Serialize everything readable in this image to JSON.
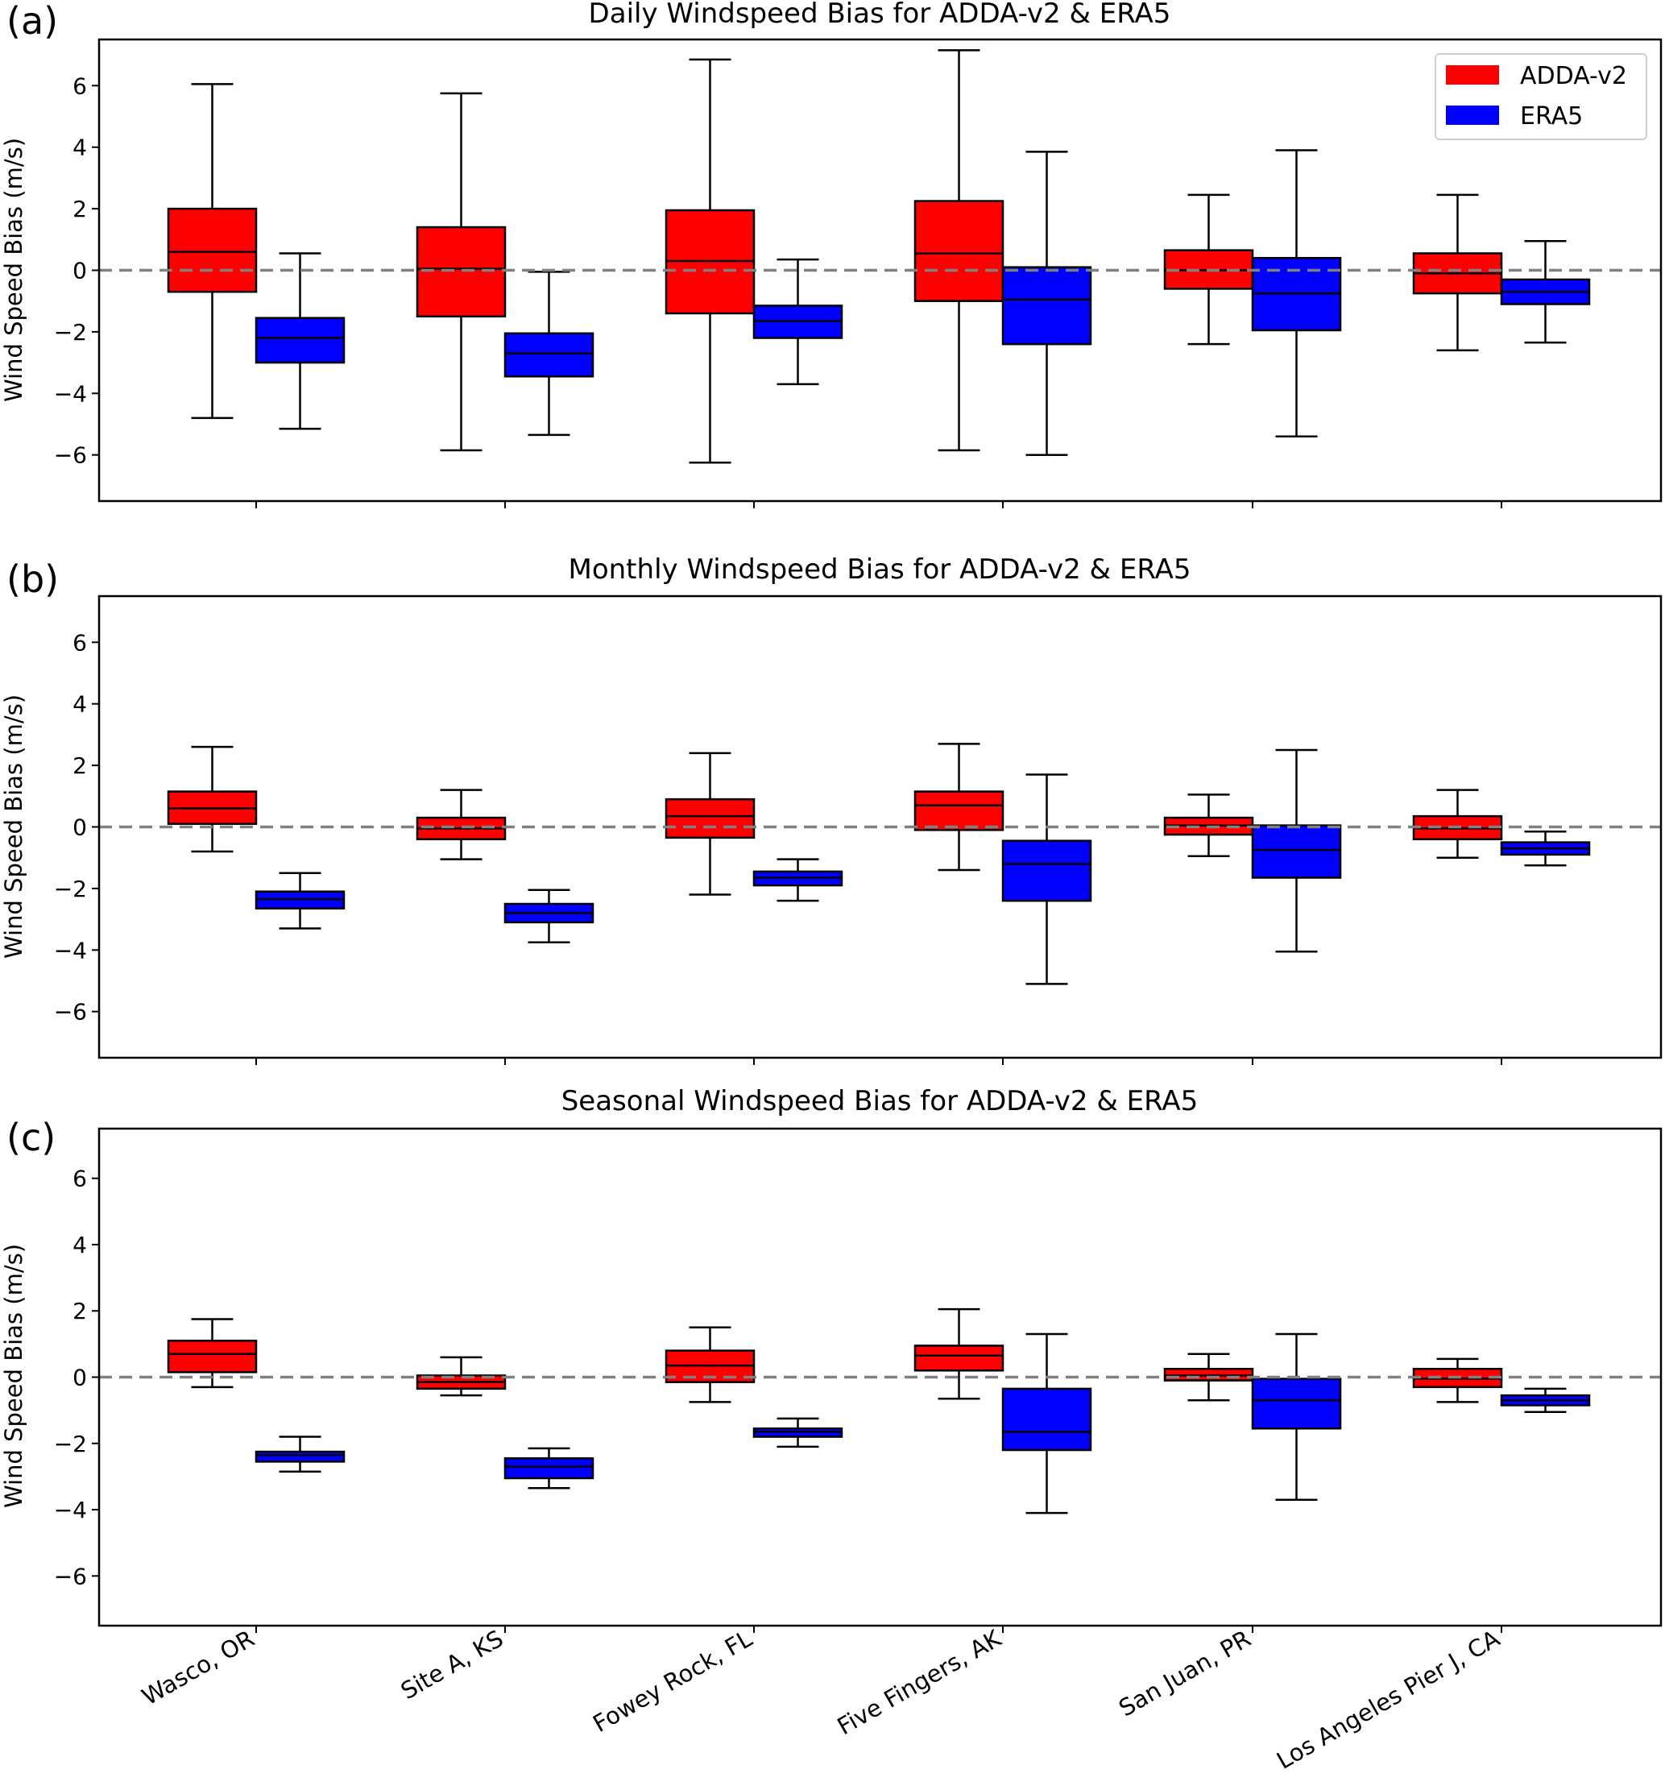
{
  "chart_data": [
    {
      "type": "boxplot",
      "panel_label": "(a)",
      "title": "Daily Windspeed Bias for ADDA-v2 & ERA5",
      "ylabel": "Wind Speed Bias (m/s)",
      "xlabel": "",
      "ylim": [
        -7.5,
        7.5
      ],
      "yticks": [
        -6,
        -4,
        -2,
        0,
        2,
        4,
        6
      ],
      "reference_line": 0,
      "legend": "top-right",
      "categories": [
        "Wasco, OR",
        "Site A, KS",
        "Fowey Rock, FL",
        "Five Fingers, AK",
        "San Juan, PR",
        "Los Angeles Pier J, CA"
      ],
      "series": [
        {
          "name": "ADDA-v2",
          "color": "#ff0000",
          "boxes": [
            {
              "whislo": -4.8,
              "q1": -0.7,
              "med": 0.6,
              "q3": 2.0,
              "whishi": 6.05
            },
            {
              "whislo": -5.85,
              "q1": -1.5,
              "med": 0.05,
              "q3": 1.4,
              "whishi": 5.75
            },
            {
              "whislo": -6.25,
              "q1": -1.4,
              "med": 0.3,
              "q3": 1.95,
              "whishi": 6.85
            },
            {
              "whislo": -5.85,
              "q1": -1.0,
              "med": 0.55,
              "q3": 2.25,
              "whishi": 7.15
            },
            {
              "whislo": -2.4,
              "q1": -0.6,
              "med": 0.0,
              "q3": 0.65,
              "whishi": 2.45
            },
            {
              "whislo": -2.6,
              "q1": -0.75,
              "med": -0.1,
              "q3": 0.55,
              "whishi": 2.45
            }
          ]
        },
        {
          "name": "ERA5",
          "color": "#0000ff",
          "boxes": [
            {
              "whislo": -5.15,
              "q1": -3.0,
              "med": -2.2,
              "q3": -1.55,
              "whishi": 0.55
            },
            {
              "whislo": -5.35,
              "q1": -3.45,
              "med": -2.7,
              "q3": -2.05,
              "whishi": -0.05
            },
            {
              "whislo": -3.7,
              "q1": -2.2,
              "med": -1.65,
              "q3": -1.15,
              "whishi": 0.35
            },
            {
              "whislo": -6.0,
              "q1": -2.4,
              "med": -0.95,
              "q3": 0.1,
              "whishi": 3.85
            },
            {
              "whislo": -5.4,
              "q1": -1.95,
              "med": -0.75,
              "q3": 0.4,
              "whishi": 3.9
            },
            {
              "whislo": -2.35,
              "q1": -1.1,
              "med": -0.7,
              "q3": -0.3,
              "whishi": 0.95
            }
          ]
        }
      ]
    },
    {
      "type": "boxplot",
      "panel_label": "(b)",
      "title": "Monthly Windspeed Bias for ADDA-v2 & ERA5",
      "ylabel": "Wind Speed Bias (m/s)",
      "xlabel": "",
      "ylim": [
        -7.5,
        7.5
      ],
      "yticks": [
        -6,
        -4,
        -2,
        0,
        2,
        4,
        6
      ],
      "reference_line": 0,
      "categories": [
        "Wasco, OR",
        "Site A, KS",
        "Fowey Rock, FL",
        "Five Fingers, AK",
        "San Juan, PR",
        "Los Angeles Pier J, CA"
      ],
      "series": [
        {
          "name": "ADDA-v2",
          "color": "#ff0000",
          "boxes": [
            {
              "whislo": -0.8,
              "q1": 0.1,
              "med": 0.6,
              "q3": 1.15,
              "whishi": 2.6
            },
            {
              "whislo": -1.05,
              "q1": -0.4,
              "med": -0.05,
              "q3": 0.3,
              "whishi": 1.2
            },
            {
              "whislo": -2.2,
              "q1": -0.35,
              "med": 0.35,
              "q3": 0.9,
              "whishi": 2.4
            },
            {
              "whislo": -1.4,
              "q1": -0.1,
              "med": 0.7,
              "q3": 1.15,
              "whishi": 2.7
            },
            {
              "whislo": -0.95,
              "q1": -0.25,
              "med": 0.05,
              "q3": 0.3,
              "whishi": 1.05
            },
            {
              "whislo": -1.0,
              "q1": -0.4,
              "med": -0.05,
              "q3": 0.35,
              "whishi": 1.2
            }
          ]
        },
        {
          "name": "ERA5",
          "color": "#0000ff",
          "boxes": [
            {
              "whislo": -3.3,
              "q1": -2.65,
              "med": -2.35,
              "q3": -2.1,
              "whishi": -1.5
            },
            {
              "whislo": -3.75,
              "q1": -3.1,
              "med": -2.8,
              "q3": -2.5,
              "whishi": -2.05
            },
            {
              "whislo": -2.4,
              "q1": -1.9,
              "med": -1.65,
              "q3": -1.45,
              "whishi": -1.05
            },
            {
              "whislo": -5.1,
              "q1": -2.4,
              "med": -1.2,
              "q3": -0.45,
              "whishi": 1.7
            },
            {
              "whislo": -4.05,
              "q1": -1.65,
              "med": -0.75,
              "q3": 0.05,
              "whishi": 2.5
            },
            {
              "whislo": -1.25,
              "q1": -0.9,
              "med": -0.7,
              "q3": -0.5,
              "whishi": -0.15
            }
          ]
        }
      ]
    },
    {
      "type": "boxplot",
      "panel_label": "(c)",
      "title": "Seasonal Windspeed Bias for ADDA-v2 & ERA5",
      "ylabel": "Wind Speed Bias (m/s)",
      "xlabel": "",
      "ylim": [
        -7.5,
        7.5
      ],
      "yticks": [
        -6,
        -4,
        -2,
        0,
        2,
        4,
        6
      ],
      "reference_line": 0,
      "categories": [
        "Wasco, OR",
        "Site A, KS",
        "Fowey Rock, FL",
        "Five Fingers, AK",
        "San Juan, PR",
        "Los Angeles Pier J, CA"
      ],
      "series": [
        {
          "name": "ADDA-v2",
          "color": "#ff0000",
          "boxes": [
            {
              "whislo": -0.3,
              "q1": 0.15,
              "med": 0.7,
              "q3": 1.1,
              "whishi": 1.75
            },
            {
              "whislo": -0.55,
              "q1": -0.35,
              "med": -0.15,
              "q3": 0.05,
              "whishi": 0.6
            },
            {
              "whislo": -0.75,
              "q1": -0.15,
              "med": 0.35,
              "q3": 0.8,
              "whishi": 1.5
            },
            {
              "whislo": -0.65,
              "q1": 0.2,
              "med": 0.65,
              "q3": 0.95,
              "whishi": 2.05
            },
            {
              "whislo": -0.7,
              "q1": -0.1,
              "med": 0.05,
              "q3": 0.25,
              "whishi": 0.7
            },
            {
              "whislo": -0.75,
              "q1": -0.3,
              "med": -0.05,
              "q3": 0.25,
              "whishi": 0.55
            }
          ]
        },
        {
          "name": "ERA5",
          "color": "#0000ff",
          "boxes": [
            {
              "whislo": -2.85,
              "q1": -2.55,
              "med": -2.35,
              "q3": -2.25,
              "whishi": -1.8
            },
            {
              "whislo": -3.35,
              "q1": -3.05,
              "med": -2.7,
              "q3": -2.45,
              "whishi": -2.15
            },
            {
              "whislo": -2.1,
              "q1": -1.8,
              "med": -1.65,
              "q3": -1.55,
              "whishi": -1.25
            },
            {
              "whislo": -4.1,
              "q1": -2.2,
              "med": -1.65,
              "q3": -0.35,
              "whishi": 1.3
            },
            {
              "whislo": -3.7,
              "q1": -1.55,
              "med": -0.7,
              "q3": -0.05,
              "whishi": 1.3
            },
            {
              "whislo": -1.05,
              "q1": -0.85,
              "med": -0.7,
              "q3": -0.55,
              "whishi": -0.35
            }
          ]
        }
      ]
    }
  ],
  "legend": {
    "items": [
      {
        "label": "ADDA-v2",
        "color": "#ff0000"
      },
      {
        "label": "ERA5",
        "color": "#0000ff"
      }
    ]
  },
  "colors": {
    "reference_line": "#808080",
    "axis": "#000000"
  }
}
